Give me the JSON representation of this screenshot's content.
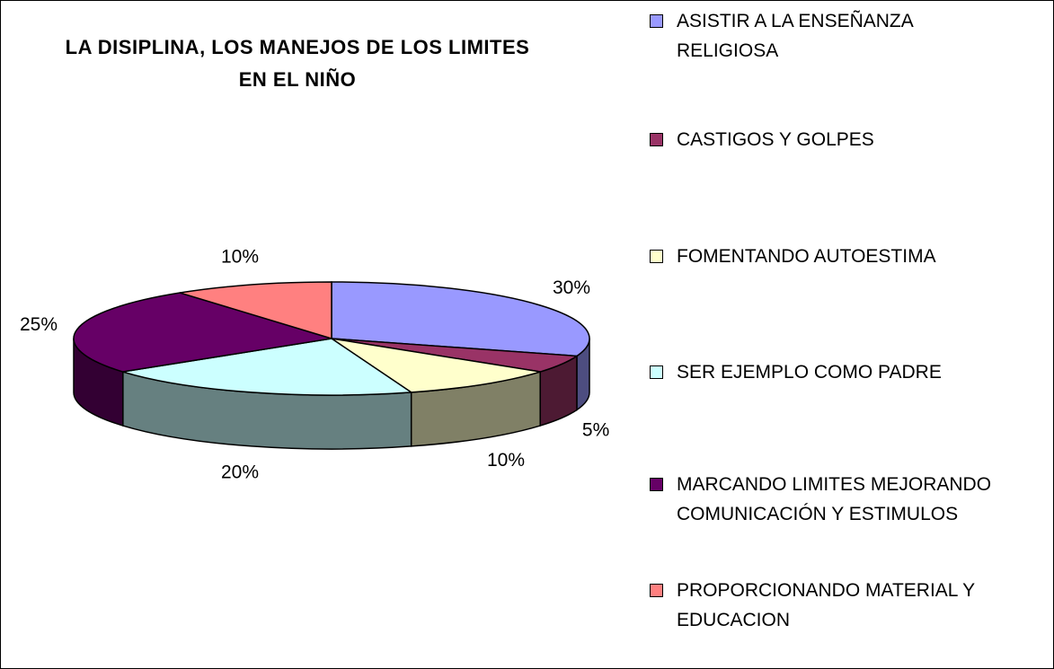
{
  "chart_data": {
    "type": "pie",
    "title": "LA DISIPLINA, LOS MANEJOS DE LOS LIMITES EN EL NIÑO",
    "categories": [
      "ASISTIR A LA ENSEÑANZA RELIGIOSA",
      "CASTIGOS Y GOLPES",
      "FOMENTANDO AUTOESTIMA",
      "SER EJEMPLO COMO PADRE",
      "MARCANDO LIMITES MEJORANDO COMUNICACIÓN Y ESTIMULOS",
      "PROPORCIONANDO MATERIAL Y EDUCACION"
    ],
    "values": [
      30,
      5,
      10,
      20,
      25,
      10
    ],
    "value_labels": [
      "30%",
      "5%",
      "10%",
      "20%",
      "25%",
      "10%"
    ],
    "colors": [
      "#9999ff",
      "#993366",
      "#ffffcc",
      "#ccffff",
      "#660066",
      "#ff8080"
    ],
    "legend": "right"
  }
}
